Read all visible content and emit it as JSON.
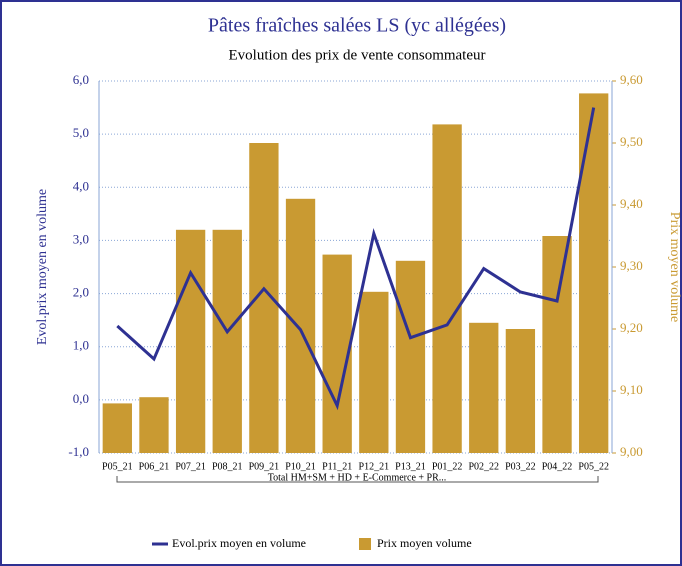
{
  "chart_data": {
    "type": "bar_line",
    "title": "Pâtes fraîches salées LS (yc allégées)",
    "subtitle": "Evolution des prix de vente consommateur",
    "ylabel": "Evol.prix moyen en volume",
    "y2label": "Prix moyen volume",
    "group_label": "Total HM+SM + HD + E-Commerce + PR...",
    "categories": [
      "P05_21",
      "P06_21",
      "P07_21",
      "P08_21",
      "P09_21",
      "P10_21",
      "P11_21",
      "P12_21",
      "P13_21",
      "P01_22",
      "P02_22",
      "P03_22",
      "P04_22",
      "P05_22"
    ],
    "series": [
      {
        "name": "Evol.prix moyen en volume",
        "type": "line",
        "axis": "y",
        "color": "#2e3192",
        "values": [
          1.39,
          0.77,
          2.39,
          1.28,
          2.09,
          1.32,
          -0.11,
          3.13,
          1.17,
          1.41,
          2.47,
          2.03,
          1.86,
          5.5
        ]
      },
      {
        "name": "Prix moyen volume",
        "type": "bar",
        "axis": "y2",
        "color": "#c99a32",
        "values": [
          9.08,
          9.09,
          9.36,
          9.36,
          9.5,
          9.41,
          9.32,
          9.26,
          9.31,
          9.53,
          9.21,
          9.2,
          9.35,
          9.58
        ]
      }
    ],
    "ylim": [
      -1,
      6
    ],
    "yticks": [
      {
        "value": -1,
        "label": "-1,0"
      },
      {
        "value": 0,
        "label": "0,0"
      },
      {
        "value": 1,
        "label": "1,0"
      },
      {
        "value": 2,
        "label": "2,0"
      },
      {
        "value": 3,
        "label": "3,0"
      },
      {
        "value": 4,
        "label": "4,0"
      },
      {
        "value": 5,
        "label": "5,0"
      },
      {
        "value": 6,
        "label": "6,0"
      }
    ],
    "y2lim": [
      9,
      9.6
    ],
    "y2ticks": [
      {
        "value": 9,
        "label": "9,00"
      },
      {
        "value": 9.1,
        "label": "9,10"
      },
      {
        "value": 9.2,
        "label": "9,20"
      },
      {
        "value": 9.3,
        "label": "9,30"
      },
      {
        "value": 9.4,
        "label": "9,40"
      },
      {
        "value": 9.5,
        "label": "9,50"
      },
      {
        "value": 9.6,
        "label": "9,60"
      }
    ],
    "grid": true
  }
}
